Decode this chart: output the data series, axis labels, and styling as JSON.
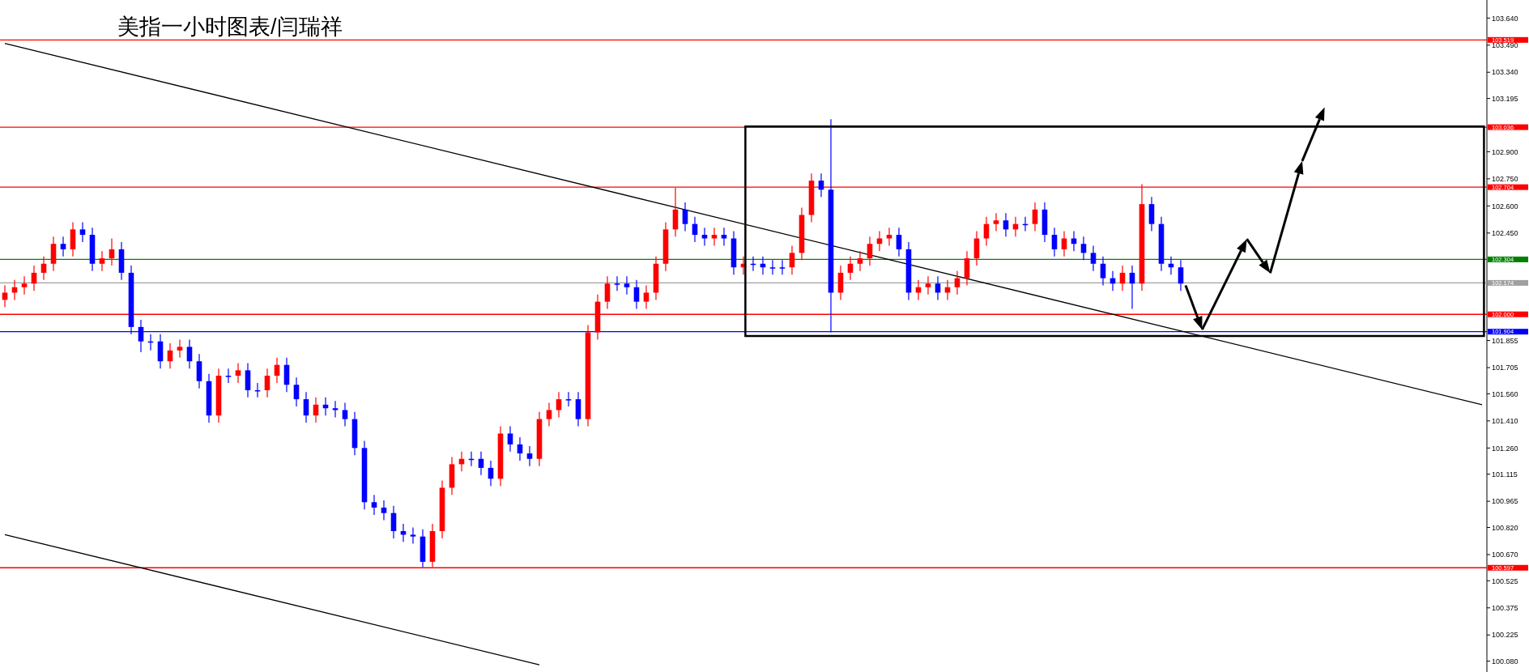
{
  "chart_data": {
    "type": "candlestick",
    "title": "美指一小时图表/闫瑞祥",
    "tick_labels": "y",
    "ylim": [
      100.02,
      103.74
    ],
    "yticks": [
      {
        "value": 100.08,
        "label": "100.080"
      },
      100.225,
      100.375,
      100.525,
      {
        "value": 100.67,
        "label": "100.670"
      },
      {
        "value": 100.82,
        "label": "100.820"
      },
      100.965,
      101.115,
      {
        "value": 101.26,
        "label": "101.260"
      },
      {
        "value": 101.41,
        "label": "101.410"
      },
      {
        "value": 101.56,
        "label": "101.560"
      },
      101.705,
      101.855,
      {
        "value": 102.45,
        "label": "102.450"
      },
      {
        "value": 102.6,
        "label": "102.600"
      },
      {
        "value": 102.75,
        "label": "102.750"
      },
      {
        "value": 102.9,
        "label": "102.900"
      },
      103.195,
      {
        "value": 103.34,
        "label": "103.340"
      },
      {
        "value": 103.49,
        "label": "103.490"
      },
      {
        "value": 103.64,
        "label": "103.640"
      }
    ],
    "categories": [
      null,
      null,
      null,
      null,
      null,
      null,
      null,
      null,
      null,
      null,
      null,
      null,
      null,
      null,
      null,
      null,
      null,
      null,
      null,
      null,
      null,
      null,
      null,
      null,
      null,
      null,
      null,
      null,
      null,
      null,
      null,
      null,
      null,
      null,
      null,
      null,
      null,
      null,
      null,
      null,
      null,
      null,
      null,
      null,
      null,
      null,
      null,
      null,
      null,
      null,
      null,
      null,
      null,
      null,
      null,
      null,
      null,
      null,
      null,
      null,
      null,
      null,
      null,
      null,
      null,
      null,
      null,
      null,
      null,
      null,
      null,
      null,
      null,
      null,
      null,
      null,
      null,
      null,
      null,
      null,
      null,
      null,
      null,
      null,
      null,
      null,
      null,
      null,
      null,
      null,
      null,
      null,
      null,
      null,
      null,
      null,
      null,
      null,
      null,
      null,
      null,
      null,
      null,
      null,
      null,
      null,
      null,
      null,
      null,
      null,
      null,
      null,
      null,
      null,
      null,
      null,
      null,
      null,
      null,
      null,
      null,
      null,
      null,
      null,
      null,
      null,
      null,
      null,
      null,
      null,
      null,
      null,
      null,
      null,
      null,
      null,
      null,
      null,
      null,
      null,
      null,
      null,
      null,
      null,
      null,
      null,
      null,
      null,
      null,
      null,
      null,
      null,
      null
    ],
    "ohlc": [
      [
        102.08,
        102.16,
        102.04,
        102.12
      ],
      [
        102.12,
        102.19,
        102.08,
        102.15
      ],
      [
        102.15,
        102.21,
        102.11,
        102.17
      ],
      [
        102.17,
        102.27,
        102.13,
        102.23
      ],
      [
        102.23,
        102.32,
        102.19,
        102.28
      ],
      [
        102.28,
        102.43,
        102.24,
        102.39
      ],
      [
        102.39,
        102.43,
        102.32,
        102.36
      ],
      [
        102.36,
        102.51,
        102.32,
        102.47
      ],
      [
        102.47,
        102.51,
        102.4,
        102.44
      ],
      [
        102.44,
        102.48,
        102.24,
        102.28
      ],
      [
        102.28,
        102.35,
        102.24,
        102.31
      ],
      [
        102.31,
        102.42,
        102.27,
        102.36
      ],
      [
        102.36,
        102.4,
        102.19,
        102.23
      ],
      [
        102.23,
        102.27,
        101.89,
        101.93
      ],
      [
        101.93,
        101.97,
        101.79,
        101.85
      ],
      [
        101.85,
        101.89,
        101.8,
        101.85
      ],
      [
        101.85,
        101.89,
        101.7,
        101.74
      ],
      [
        101.74,
        101.84,
        101.7,
        101.8
      ],
      [
        101.8,
        101.86,
        101.76,
        101.82
      ],
      [
        101.82,
        101.86,
        101.7,
        101.74
      ],
      [
        101.74,
        101.78,
        101.59,
        101.63
      ],
      [
        101.63,
        101.67,
        101.4,
        101.44
      ],
      [
        101.44,
        101.7,
        101.4,
        101.66
      ],
      [
        101.66,
        101.7,
        101.62,
        101.66
      ],
      [
        101.66,
        101.73,
        101.62,
        101.69
      ],
      [
        101.69,
        101.73,
        101.54,
        101.58
      ],
      [
        101.58,
        101.62,
        101.54,
        101.58
      ],
      [
        101.58,
        101.7,
        101.54,
        101.66
      ],
      [
        101.66,
        101.76,
        101.62,
        101.72
      ],
      [
        101.72,
        101.76,
        101.57,
        101.61
      ],
      [
        101.61,
        101.65,
        101.49,
        101.53
      ],
      [
        101.53,
        101.57,
        101.4,
        101.44
      ],
      [
        101.44,
        101.54,
        101.4,
        101.5
      ],
      [
        101.5,
        101.54,
        101.44,
        101.48
      ],
      [
        101.48,
        101.52,
        101.43,
        101.47
      ],
      [
        101.47,
        101.51,
        101.38,
        101.42
      ],
      [
        101.42,
        101.46,
        101.22,
        101.26
      ],
      [
        101.26,
        101.3,
        100.92,
        100.96
      ],
      [
        100.96,
        101.0,
        100.89,
        100.93
      ],
      [
        100.93,
        100.97,
        100.86,
        100.9
      ],
      [
        100.9,
        100.94,
        100.76,
        100.8
      ],
      [
        100.8,
        100.84,
        100.74,
        100.78
      ],
      [
        100.78,
        100.82,
        100.73,
        100.77
      ],
      [
        100.77,
        100.81,
        100.6,
        100.63
      ],
      [
        100.63,
        100.84,
        100.6,
        100.8
      ],
      [
        100.8,
        101.08,
        100.76,
        101.04
      ],
      [
        101.04,
        101.21,
        101.0,
        101.17
      ],
      [
        101.17,
        101.24,
        101.13,
        101.2
      ],
      [
        101.2,
        101.24,
        101.16,
        101.2
      ],
      [
        101.2,
        101.24,
        101.11,
        101.15
      ],
      [
        101.15,
        101.19,
        101.05,
        101.09
      ],
      [
        101.09,
        101.38,
        101.05,
        101.34
      ],
      [
        101.34,
        101.38,
        101.24,
        101.28
      ],
      [
        101.28,
        101.32,
        101.19,
        101.23
      ],
      [
        101.23,
        101.27,
        101.16,
        101.2
      ],
      [
        101.2,
        101.46,
        101.16,
        101.42
      ],
      [
        101.42,
        101.51,
        101.38,
        101.47
      ],
      [
        101.47,
        101.57,
        101.43,
        101.53
      ],
      [
        101.53,
        101.57,
        101.49,
        101.53
      ],
      [
        101.53,
        101.57,
        101.38,
        101.42
      ],
      [
        101.42,
        101.94,
        101.38,
        101.9
      ],
      [
        101.9,
        102.11,
        101.86,
        102.07
      ],
      [
        102.07,
        102.21,
        102.03,
        102.17
      ],
      [
        102.17,
        102.21,
        102.13,
        102.17
      ],
      [
        102.17,
        102.21,
        102.11,
        102.15
      ],
      [
        102.15,
        102.19,
        102.03,
        102.07
      ],
      [
        102.07,
        102.16,
        102.03,
        102.12
      ],
      [
        102.12,
        102.32,
        102.08,
        102.28
      ],
      [
        102.28,
        102.51,
        102.24,
        102.47
      ],
      [
        102.47,
        102.7,
        102.43,
        102.58
      ],
      [
        102.58,
        102.62,
        102.46,
        102.5
      ],
      [
        102.5,
        102.54,
        102.4,
        102.44
      ],
      [
        102.44,
        102.48,
        102.38,
        102.42
      ],
      [
        102.42,
        102.48,
        102.38,
        102.44
      ],
      [
        102.44,
        102.48,
        102.38,
        102.42
      ],
      [
        102.42,
        102.46,
        102.22,
        102.26
      ],
      [
        102.26,
        102.32,
        102.22,
        102.28
      ],
      [
        102.28,
        102.32,
        102.24,
        102.28
      ],
      [
        102.28,
        102.32,
        102.22,
        102.26
      ],
      [
        102.26,
        102.3,
        102.22,
        102.26
      ],
      [
        102.26,
        102.3,
        102.22,
        102.26
      ],
      [
        102.26,
        102.38,
        102.22,
        102.34
      ],
      [
        102.34,
        102.59,
        102.3,
        102.55
      ],
      [
        102.55,
        102.78,
        102.51,
        102.74
      ],
      [
        102.74,
        102.78,
        102.65,
        102.69
      ],
      [
        102.69,
        103.08,
        101.9,
        102.12
      ],
      [
        102.12,
        102.27,
        102.08,
        102.23
      ],
      [
        102.23,
        102.32,
        102.19,
        102.28
      ],
      [
        102.28,
        102.35,
        102.24,
        102.31
      ],
      [
        102.31,
        102.43,
        102.27,
        102.39
      ],
      [
        102.39,
        102.46,
        102.35,
        102.42
      ],
      [
        102.42,
        102.48,
        102.38,
        102.44
      ],
      [
        102.44,
        102.48,
        102.32,
        102.36
      ],
      [
        102.36,
        102.4,
        102.08,
        102.12
      ],
      [
        102.12,
        102.19,
        102.08,
        102.15
      ],
      [
        102.15,
        102.21,
        102.11,
        102.17
      ],
      [
        102.17,
        102.21,
        102.08,
        102.12
      ],
      [
        102.12,
        102.19,
        102.08,
        102.15
      ],
      [
        102.15,
        102.24,
        102.11,
        102.2
      ],
      [
        102.2,
        102.35,
        102.16,
        102.31
      ],
      [
        102.31,
        102.46,
        102.27,
        102.42
      ],
      [
        102.42,
        102.54,
        102.38,
        102.5
      ],
      [
        102.5,
        102.56,
        102.46,
        102.52
      ],
      [
        102.52,
        102.56,
        102.43,
        102.47
      ],
      [
        102.47,
        102.54,
        102.43,
        102.5
      ],
      [
        102.5,
        102.54,
        102.46,
        102.5
      ],
      [
        102.5,
        102.62,
        102.46,
        102.58
      ],
      [
        102.58,
        102.62,
        102.4,
        102.44
      ],
      [
        102.44,
        102.48,
        102.32,
        102.36
      ],
      [
        102.36,
        102.46,
        102.32,
        102.42
      ],
      [
        102.42,
        102.46,
        102.35,
        102.39
      ],
      [
        102.39,
        102.43,
        102.3,
        102.34
      ],
      [
        102.34,
        102.38,
        102.24,
        102.28
      ],
      [
        102.28,
        102.32,
        102.16,
        102.2
      ],
      [
        102.2,
        102.24,
        102.13,
        102.17
      ],
      [
        102.17,
        102.27,
        102.13,
        102.23
      ],
      [
        102.23,
        102.27,
        102.03,
        102.17
      ],
      [
        102.17,
        102.72,
        102.13,
        102.61
      ],
      [
        102.61,
        102.65,
        102.46,
        102.5
      ],
      [
        102.5,
        102.54,
        102.24,
        102.28
      ],
      [
        102.28,
        102.32,
        102.22,
        102.26
      ],
      [
        102.26,
        102.3,
        102.13,
        102.17
      ],
      null,
      null,
      null,
      null,
      null,
      null,
      null,
      null,
      null,
      null,
      null,
      null,
      null,
      null,
      null,
      null,
      null,
      null,
      null,
      null,
      null,
      null,
      null,
      null,
      null,
      null,
      null,
      null,
      null,
      null,
      null
    ],
    "colors": [
      "#ff0000",
      "#ff0000",
      "#ff0000",
      "#ff0000",
      "#ff0000",
      "#ff0000",
      "#0000ff",
      "#ff0000",
      "#0000ff",
      "#0000ff",
      "#ff0000",
      "#ff0000",
      "#0000ff",
      "#0000ff",
      "#0000ff",
      "#0000ff",
      "#0000ff",
      "#ff0000",
      "#ff0000",
      "#0000ff",
      "#0000ff",
      "#0000ff",
      "#ff0000",
      "#0000ff",
      "#ff0000",
      "#0000ff",
      "#0000ff",
      "#ff0000",
      "#ff0000",
      "#0000ff",
      "#0000ff",
      "#0000ff",
      "#ff0000",
      "#0000ff",
      "#0000ff",
      "#0000ff",
      "#0000ff",
      "#0000ff",
      "#0000ff",
      "#0000ff",
      "#0000ff",
      "#0000ff",
      "#0000ff",
      "#0000ff",
      "#ff0000",
      "#ff0000",
      "#ff0000",
      "#ff0000",
      "#0000ff",
      "#0000ff",
      "#0000ff",
      "#ff0000",
      "#0000ff",
      "#0000ff",
      "#0000ff",
      "#ff0000",
      "#ff0000",
      "#ff0000",
      "#0000ff",
      "#0000ff",
      "#ff0000",
      "#ff0000",
      "#ff0000",
      "#0000ff",
      "#0000ff",
      "#0000ff",
      "#ff0000",
      "#ff0000",
      "#ff0000",
      "#ff0000",
      "#0000ff",
      "#0000ff",
      "#0000ff",
      "#ff0000",
      "#0000ff",
      "#0000ff",
      "#ff0000",
      "#0000ff",
      "#0000ff",
      "#0000ff",
      "#0000ff",
      "#ff0000",
      "#ff0000",
      "#ff0000",
      "#0000ff",
      "#0000ff",
      "#ff0000",
      "#ff0000",
      "#ff0000",
      "#ff0000",
      "#ff0000",
      "#ff0000",
      "#0000ff",
      "#0000ff",
      "#ff0000",
      "#ff0000",
      "#0000ff",
      "#ff0000",
      "#ff0000",
      "#ff0000",
      "#ff0000",
      "#ff0000",
      "#ff0000",
      "#0000ff",
      "#ff0000",
      "#0000ff",
      "#ff0000",
      "#0000ff",
      "#0000ff",
      "#ff0000",
      "#0000ff",
      "#0000ff",
      "#0000ff",
      "#0000ff",
      "#0000ff",
      "#ff0000",
      "#0000ff",
      "#ff0000",
      "#0000ff",
      "#0000ff",
      "#0000ff",
      "#0000ff",
      null,
      null,
      null,
      null,
      null,
      null,
      null,
      null,
      null,
      null,
      null,
      null,
      null,
      null,
      null,
      null,
      null,
      null,
      null,
      null,
      null,
      null,
      null,
      null,
      null,
      null,
      null,
      null,
      null,
      null,
      null
    ],
    "series": [
      {
        "type": "line",
        "color": "#000000",
        "values": [
          103.5,
          null,
          null,
          null,
          null,
          null,
          null,
          null,
          null,
          null,
          null,
          null,
          null,
          null,
          null,
          null,
          null,
          null,
          null,
          null,
          null,
          null,
          null,
          null,
          null,
          null,
          null,
          null,
          null,
          null,
          null,
          null,
          null,
          null,
          null,
          null,
          null,
          null,
          null,
          null,
          null,
          null,
          null,
          null,
          null,
          null,
          null,
          null,
          null,
          null,
          null,
          null,
          null,
          null,
          null,
          null,
          null,
          null,
          null,
          null,
          null,
          null,
          null,
          null,
          null,
          null,
          null,
          null,
          null,
          null,
          null,
          null,
          null,
          null,
          null,
          null,
          null,
          null,
          null,
          null,
          null,
          null,
          null,
          null,
          null,
          null,
          null,
          null,
          null,
          null,
          null,
          null,
          null,
          null,
          null,
          null,
          null,
          null,
          null,
          null,
          null,
          null,
          null,
          null,
          null,
          null,
          null,
          null,
          null,
          null,
          null,
          null,
          null,
          null,
          null,
          null,
          null,
          null,
          null,
          null,
          null,
          null,
          null,
          null,
          null,
          null,
          null,
          null,
          null,
          null,
          null,
          null,
          null,
          null,
          null,
          null,
          null,
          null,
          null,
          null,
          null,
          null,
          null,
          null,
          null,
          null,
          null,
          null,
          null,
          null,
          null,
          null,
          101.5
        ]
      },
      {
        "type": "line",
        "color": "#000000",
        "values": [
          100.78,
          null,
          null,
          null,
          null,
          null,
          null,
          null,
          null,
          null,
          null,
          null,
          null,
          null,
          null,
          null,
          null,
          null,
          null,
          null,
          null,
          null,
          null,
          null,
          null,
          null,
          null,
          null,
          null,
          null,
          null,
          null,
          null,
          null,
          null,
          null,
          null,
          null,
          null,
          null,
          null,
          null,
          null,
          null,
          null,
          null,
          null,
          null,
          null,
          null,
          null,
          null,
          null,
          null,
          null,
          100.06,
          null,
          null,
          null,
          null,
          null,
          null,
          null,
          null,
          null,
          null,
          null,
          null,
          null,
          null,
          null,
          null,
          null,
          null,
          null,
          null,
          null,
          null,
          null,
          null,
          null,
          null,
          null,
          null,
          null,
          null,
          null,
          null,
          null,
          null,
          null,
          null,
          null,
          null,
          null,
          null,
          null,
          null,
          null,
          null,
          null,
          null,
          null,
          null,
          null,
          null,
          null,
          null,
          null,
          null,
          null,
          null,
          null,
          null,
          null,
          null,
          null,
          null,
          null,
          null,
          null,
          null,
          null,
          null,
          null,
          null,
          null,
          null,
          null,
          null,
          null,
          null,
          null,
          null,
          null,
          null,
          null,
          null,
          null,
          null,
          null,
          null,
          null,
          null,
          null,
          null,
          null,
          null,
          null,
          null,
          null,
          null,
          null
        ]
      }
    ],
    "ref_lines": [
      {
        "axis": "y",
        "value": 103.519,
        "label": "103.519",
        "color": "#ff0000"
      },
      {
        "axis": "y",
        "value": 103.036,
        "label": "103.036",
        "color": "#ff0000"
      },
      {
        "axis": "y",
        "value": 102.704,
        "label": "102.704",
        "color": "#ff0000"
      },
      {
        "axis": "y",
        "value": 102.304,
        "label": "102.304",
        "color": "#008000"
      },
      {
        "axis": "y",
        "value": 102.174,
        "label": "102.174",
        "color": "#a0a0a0"
      },
      {
        "axis": "y",
        "value": 102.0,
        "label": "102.000",
        "color": "#ff0000"
      },
      {
        "axis": "y",
        "value": 101.904,
        "label": "101.904",
        "color": "#0000ff"
      },
      {
        "axis": "y",
        "value": 100.597,
        "label": "100.597",
        "color": "#ff0000"
      }
    ]
  }
}
